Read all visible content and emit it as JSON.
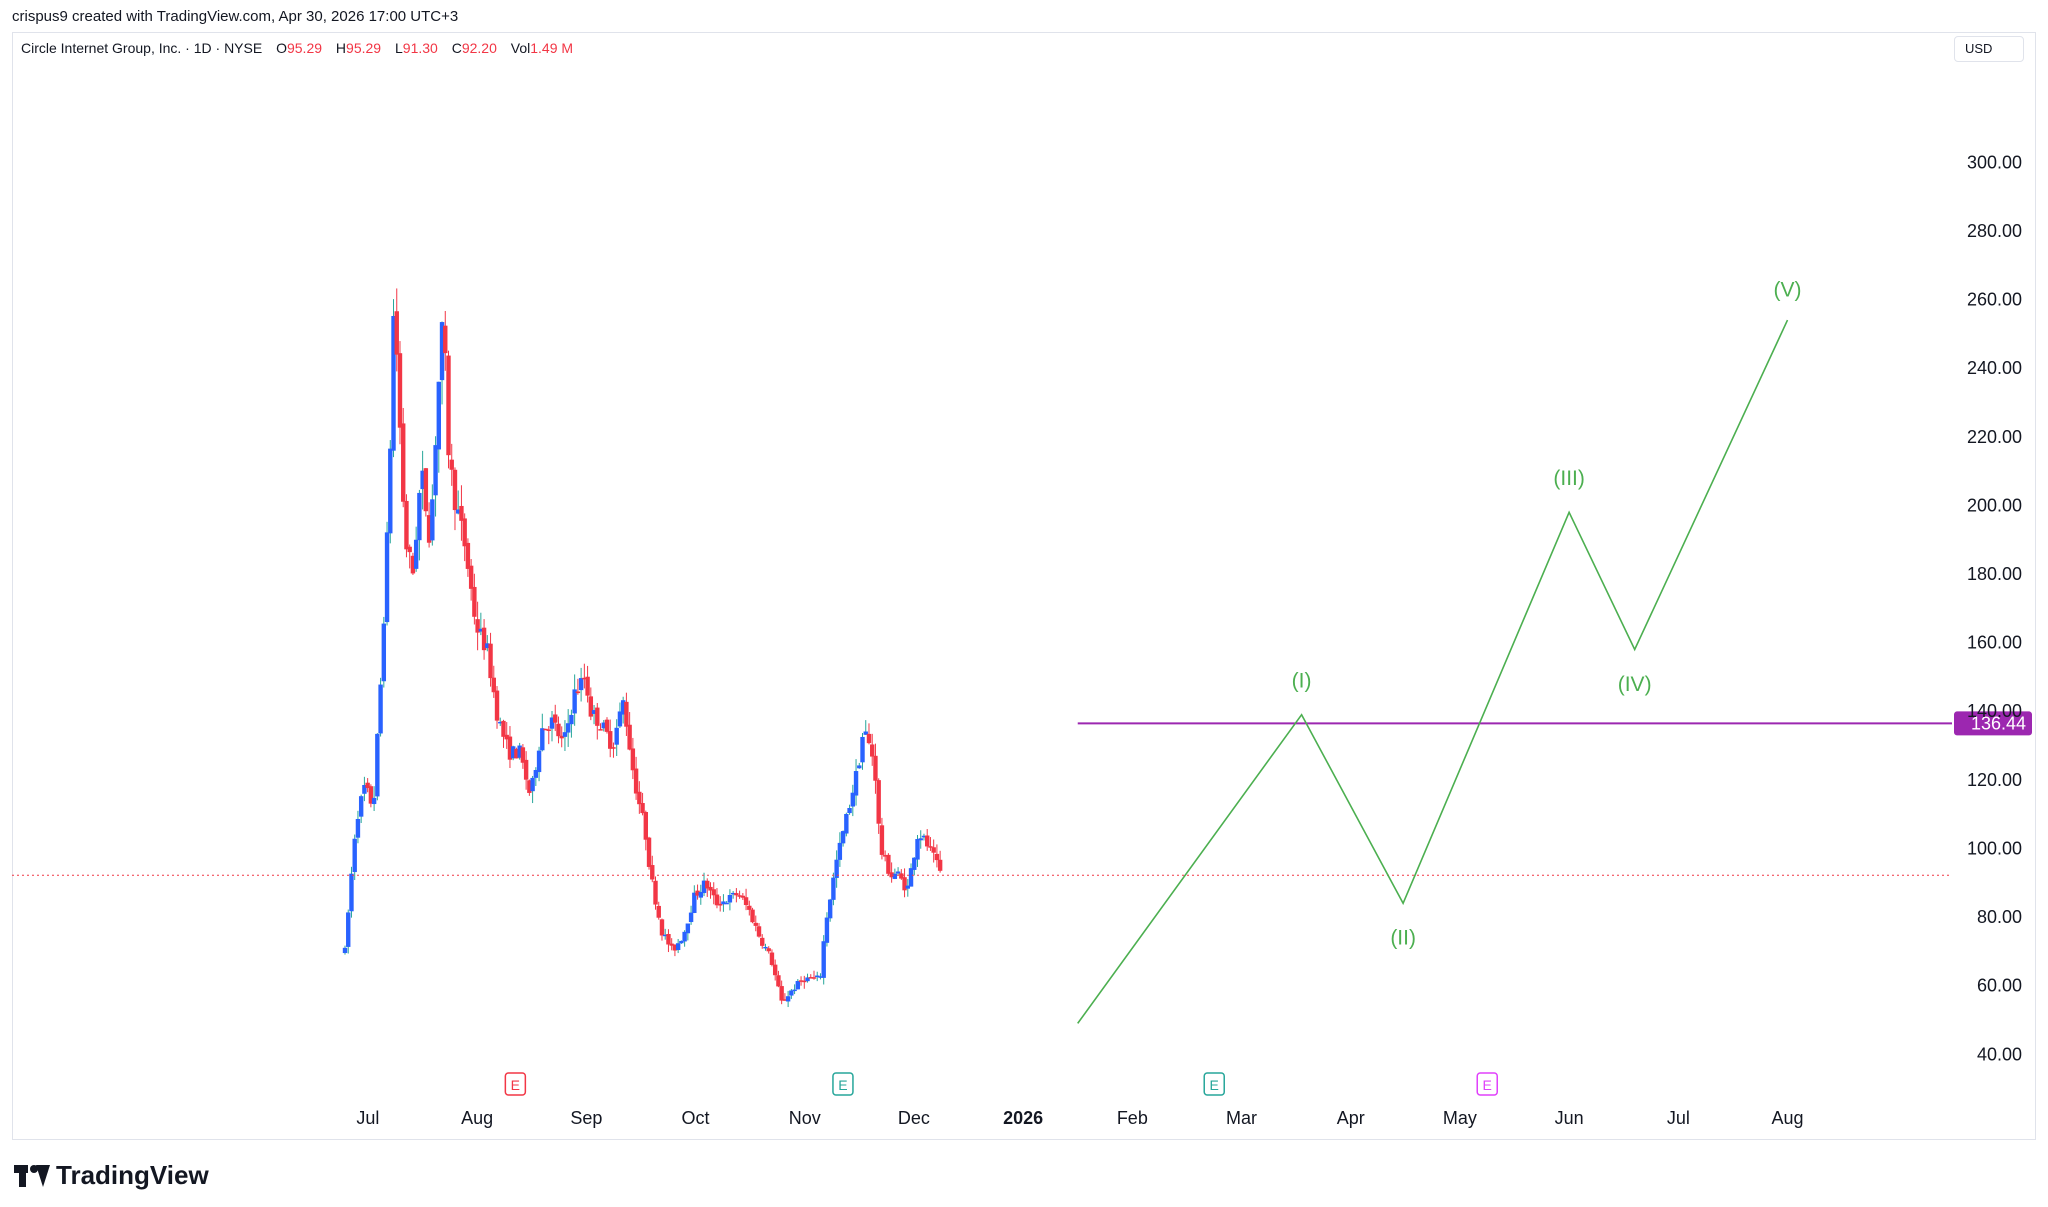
{
  "header": {
    "credit": "crispus9 created with TradingView.com, Apr 30, 2026 17:00 UTC+3"
  },
  "legend": {
    "symbol": "Circle Internet Group, Inc. · 1D · NYSE",
    "o_label": "O",
    "o_value": "95.29",
    "h_label": "H",
    "h_value": "95.29",
    "l_label": "L",
    "l_value": "91.30",
    "c_label": "C",
    "c_value": "92.20",
    "vol_label": "Vol",
    "vol_value": "1.49 M"
  },
  "currency": "USD",
  "brand": "TradingView",
  "colors": {
    "up": "#2962ff",
    "down": "#f23645",
    "wick_up": "#26a69a",
    "wave": "#4caf50",
    "level": "#9c27b0",
    "current_line": "#f23645"
  },
  "chart_data": {
    "type": "candlestick",
    "y_ticks": [
      "40.00",
      "60.00",
      "80.00",
      "100.00",
      "120.00",
      "140.00",
      "160.00",
      "180.00",
      "200.00",
      "220.00",
      "240.00",
      "260.00",
      "280.00",
      "300.00"
    ],
    "ylim": [
      36,
      324
    ],
    "x_labels": [
      {
        "label": "Jul",
        "month": 1
      },
      {
        "label": "Aug",
        "month": 2
      },
      {
        "label": "Sep",
        "month": 3
      },
      {
        "label": "Oct",
        "month": 4
      },
      {
        "label": "Nov",
        "month": 5
      },
      {
        "label": "Dec",
        "month": 6
      },
      {
        "label": "2026",
        "month": 7,
        "bold": true
      },
      {
        "label": "Feb",
        "month": 8
      },
      {
        "label": "Mar",
        "month": 9
      },
      {
        "label": "Apr",
        "month": 10
      },
      {
        "label": "May",
        "month": 11
      },
      {
        "label": "Jun",
        "month": 12
      },
      {
        "label": "Jul",
        "month": 13
      },
      {
        "label": "Aug",
        "month": 14
      }
    ],
    "anchors": [
      [
        0.0,
        70
      ],
      [
        0.1,
        108
      ],
      [
        0.18,
        118
      ],
      [
        0.26,
        112
      ],
      [
        0.33,
        150
      ],
      [
        0.4,
        200
      ],
      [
        0.45,
        262
      ],
      [
        0.5,
        225
      ],
      [
        0.55,
        190
      ],
      [
        0.62,
        180
      ],
      [
        0.7,
        210
      ],
      [
        0.78,
        190
      ],
      [
        0.85,
        232
      ],
      [
        0.9,
        255
      ],
      [
        0.95,
        215
      ],
      [
        1.0,
        203
      ],
      [
        1.1,
        188
      ],
      [
        1.2,
        165
      ],
      [
        1.3,
        158
      ],
      [
        1.4,
        138
      ],
      [
        1.5,
        128
      ],
      [
        1.6,
        128
      ],
      [
        1.7,
        115
      ],
      [
        1.8,
        135
      ],
      [
        1.9,
        137
      ],
      [
        2.0,
        130
      ],
      [
        2.1,
        145
      ],
      [
        2.2,
        150
      ],
      [
        2.25,
        140
      ],
      [
        2.35,
        136
      ],
      [
        2.45,
        130
      ],
      [
        2.55,
        143
      ],
      [
        2.65,
        120
      ],
      [
        2.75,
        105
      ],
      [
        2.8,
        92
      ],
      [
        2.9,
        76
      ],
      [
        3.0,
        70
      ],
      [
        3.1,
        75
      ],
      [
        3.2,
        86
      ],
      [
        3.3,
        90
      ],
      [
        3.4,
        84
      ],
      [
        3.5,
        85
      ],
      [
        3.6,
        87
      ],
      [
        3.7,
        82
      ],
      [
        3.8,
        74
      ],
      [
        3.9,
        68
      ],
      [
        4.0,
        55
      ],
      [
        4.1,
        59
      ],
      [
        4.2,
        62
      ],
      [
        4.35,
        62
      ],
      [
        4.4,
        78
      ],
      [
        4.5,
        96
      ],
      [
        4.6,
        110
      ],
      [
        4.7,
        124
      ],
      [
        4.75,
        135
      ],
      [
        4.85,
        125
      ],
      [
        4.9,
        100
      ],
      [
        5.0,
        92
      ],
      [
        5.05,
        93
      ],
      [
        5.15,
        88
      ],
      [
        5.25,
        105
      ],
      [
        5.35,
        100
      ],
      [
        5.45,
        93
      ]
    ],
    "candle_count": 185,
    "current_price": 92.2,
    "resistance": {
      "value": 136.44,
      "label": "136.44",
      "x_start_month": 7.5
    },
    "waves": [
      {
        "label": "(I)",
        "month": 9.55,
        "value": 139,
        "label_value": 149
      },
      {
        "label": "(II)",
        "month": 10.48,
        "value": 84,
        "label_value": 74
      },
      {
        "label": "(III)",
        "month": 12.0,
        "value": 198,
        "label_value": 208
      },
      {
        "label": "(IV)",
        "month": 12.6,
        "value": 158,
        "label_value": 148
      },
      {
        "label": "(V)",
        "month": 14.0,
        "value": 254,
        "label_value": 263
      }
    ],
    "wave_start": {
      "month": 7.5,
      "value": 49
    },
    "earnings": [
      {
        "label": "E",
        "month": 2.35,
        "color": "#f23645"
      },
      {
        "label": "E",
        "month": 5.35,
        "color": "#26a69a"
      },
      {
        "label": "E",
        "month": 8.75,
        "color": "#26a69a"
      },
      {
        "label": "E",
        "month": 11.25,
        "color": "#e040fb"
      }
    ]
  }
}
